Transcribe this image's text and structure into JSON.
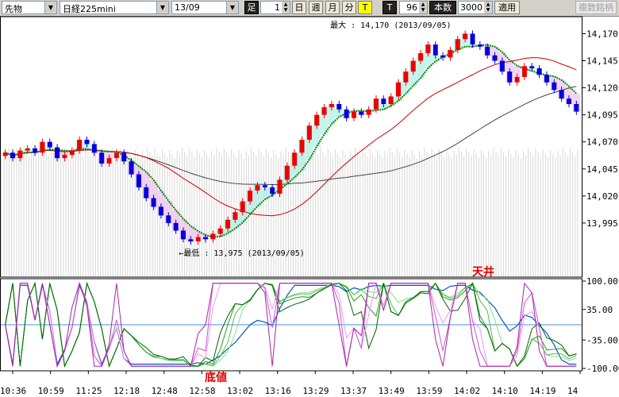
{
  "toolbar": {
    "market_select": "先物",
    "instrument_select": "日経225mini",
    "contract_select": "13/09",
    "interval_label": "足",
    "interval_value": "1",
    "btn_day": "日",
    "btn_week": "週",
    "btn_month": "月",
    "btn_minute": "分",
    "btn_tick": "T",
    "btn_t2": "T",
    "tick_count": "96",
    "bars_label": "本数",
    "bars_value": "3000",
    "apply_button": "適用",
    "compare_button": "複数銘柄"
  },
  "colors": {
    "up": "#ee0000",
    "down": "#0000dd",
    "ma_short": "#cc00cc",
    "ma_green": "#008800",
    "ma_mid": "#cc0000",
    "ma_long": "#444444",
    "osc_blue": "#0055cc",
    "cloud_green": "#aef0e6",
    "cloud_pink": "#f0c0f0"
  },
  "chart_data": [
    {
      "type": "candlestick",
      "ylim": [
        13945,
        14185
      ],
      "y_ticks": [
        "14,170",
        "14,145",
        "14,120",
        "14,095",
        "14,070",
        "14,045",
        "14,020",
        "13,995"
      ],
      "x_ticks": [
        "10:36",
        "10:59",
        "11:25",
        "12:18",
        "12:48",
        "12:58",
        "13:02",
        "13:16",
        "13:29",
        "13:37",
        "13:49",
        "13:59",
        "14:02",
        "14:10",
        "14:19",
        "14"
      ],
      "max_annotation": "最大 : 14,170 (2013/09/05)",
      "min_annotation": "←最低 : 13,975 (2013/09/05)",
      "approx_close_path": [
        14060,
        14055,
        14062,
        14064,
        14060,
        14070,
        14065,
        14055,
        14058,
        14062,
        14072,
        14068,
        14060,
        14050,
        14055,
        14060,
        14052,
        14040,
        14028,
        14018,
        14010,
        14002,
        13995,
        13988,
        13980,
        13978,
        13982,
        13980,
        13985,
        13990,
        13998,
        14005,
        14015,
        14025,
        14030,
        14028,
        14022,
        14035,
        14048,
        14060,
        14072,
        14085,
        14095,
        14102,
        14105,
        14100,
        14092,
        14098,
        14095,
        14100,
        14110,
        14105,
        14112,
        14125,
        14135,
        14145,
        14152,
        14160,
        14150,
        14148,
        14155,
        14165,
        14170,
        14160,
        14158,
        14150,
        14145,
        14135,
        14125,
        14130,
        14140,
        14138,
        14132,
        14125,
        14118,
        14110,
        14105,
        14098
      ]
    },
    {
      "type": "line",
      "title": "",
      "ylim": [
        -100,
        100
      ],
      "y_ticks": [
        "100.00",
        "35.00",
        "-35.00",
        "-100.00"
      ],
      "markers": {
        "top": "天井",
        "bottom": "底値"
      }
    }
  ]
}
